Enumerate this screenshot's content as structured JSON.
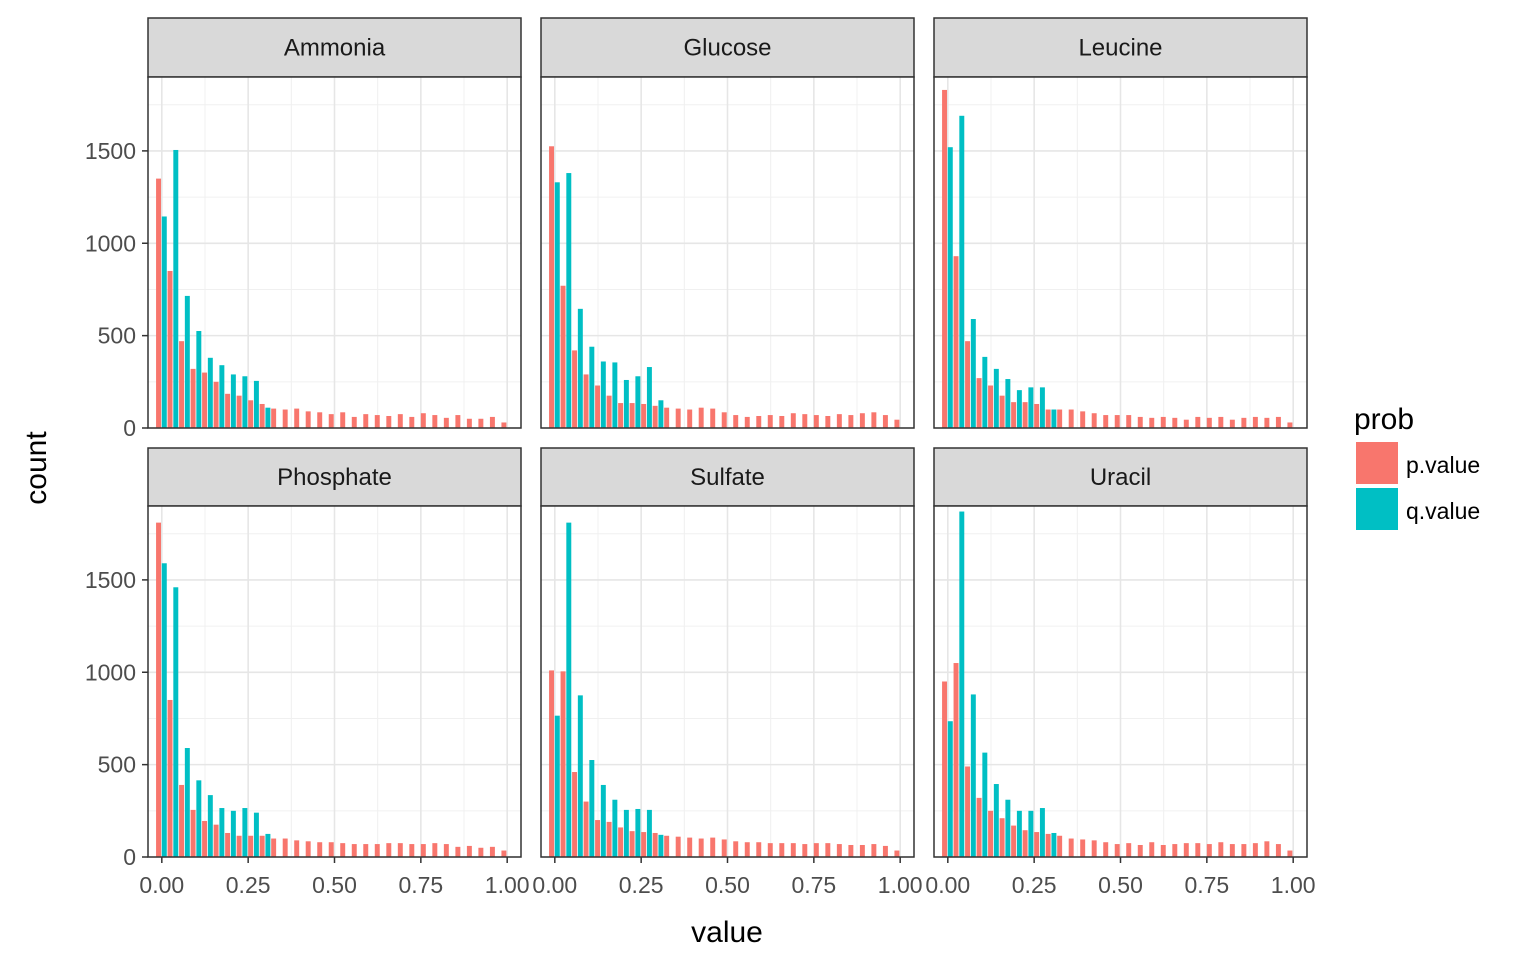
{
  "chart_data": {
    "type": "bar",
    "subtype": "faceted-histogram-dodged",
    "xlabel": "value",
    "ylabel": "count",
    "xlim": [
      -0.04,
      1.04
    ],
    "ylim": [
      0,
      1900
    ],
    "xticks": [
      0,
      0.25,
      0.5,
      0.75,
      1
    ],
    "xtick_labels": [
      "0.00",
      "0.25",
      "0.50",
      "0.75",
      "1.00"
    ],
    "yticks": [
      0,
      500,
      1000,
      1500
    ],
    "ytick_labels": [
      "0",
      "500",
      "1000",
      "1500"
    ],
    "grid": true,
    "legend": {
      "title": "prob",
      "position": "right",
      "entries": [
        {
          "label": "p.value",
          "color": "#F8766D"
        },
        {
          "label": "q.value",
          "color": "#00BFC4"
        }
      ]
    },
    "bin_centers": [
      0,
      0.0333,
      0.0667,
      0.1,
      0.1333,
      0.1667,
      0.2,
      0.2333,
      0.2667,
      0.3,
      0.3333,
      0.3667,
      0.4,
      0.4333,
      0.4667,
      0.5,
      0.5333,
      0.5667,
      0.6,
      0.6333,
      0.6667,
      0.7,
      0.7333,
      0.7667,
      0.8,
      0.8333,
      0.8667,
      0.9,
      0.9333,
      0.9667,
      1
    ],
    "facets": [
      {
        "title": "Ammonia",
        "series": [
          {
            "name": "p.value",
            "values": [
              1350,
              850,
              470,
              320,
              300,
              250,
              185,
              175,
              150,
              130,
              105,
              100,
              105,
              90,
              85,
              75,
              85,
              60,
              75,
              70,
              65,
              75,
              60,
              80,
              70,
              55,
              70,
              50,
              50,
              60,
              30
            ]
          },
          {
            "name": "q.value",
            "values": [
              1145,
              1505,
              715,
              525,
              380,
              340,
              290,
              280,
              255,
              110,
              0,
              0,
              0,
              0,
              0,
              0,
              0,
              0,
              0,
              0,
              0,
              0,
              0,
              0,
              0,
              0,
              0,
              0,
              0,
              0,
              0
            ]
          }
        ]
      },
      {
        "title": "Glucose",
        "series": [
          {
            "name": "p.value",
            "values": [
              1525,
              770,
              420,
              290,
              230,
              175,
              135,
              135,
              130,
              120,
              110,
              105,
              100,
              110,
              105,
              85,
              70,
              60,
              65,
              70,
              65,
              80,
              75,
              70,
              65,
              75,
              70,
              80,
              85,
              70,
              45
            ]
          },
          {
            "name": "q.value",
            "values": [
              1330,
              1380,
              645,
              440,
              360,
              355,
              260,
              280,
              330,
              150,
              0,
              0,
              0,
              0,
              0,
              0,
              0,
              0,
              0,
              0,
              0,
              0,
              0,
              0,
              0,
              0,
              0,
              0,
              0,
              0,
              0
            ]
          }
        ]
      },
      {
        "title": "Leucine",
        "series": [
          {
            "name": "p.value",
            "values": [
              1830,
              930,
              470,
              270,
              230,
              175,
              140,
              140,
              130,
              100,
              100,
              100,
              90,
              80,
              70,
              70,
              70,
              60,
              55,
              60,
              55,
              45,
              60,
              55,
              60,
              45,
              55,
              60,
              55,
              60,
              30
            ]
          },
          {
            "name": "q.value",
            "values": [
              1520,
              1690,
              590,
              385,
              320,
              265,
              205,
              220,
              220,
              100,
              0,
              0,
              0,
              0,
              0,
              0,
              0,
              0,
              0,
              0,
              0,
              0,
              0,
              0,
              0,
              0,
              0,
              0,
              0,
              0,
              0
            ]
          }
        ]
      },
      {
        "title": "Phosphate",
        "series": [
          {
            "name": "p.value",
            "values": [
              1810,
              850,
              390,
              255,
              195,
              175,
              130,
              115,
              115,
              115,
              100,
              100,
              90,
              85,
              80,
              80,
              75,
              70,
              70,
              70,
              75,
              75,
              70,
              70,
              75,
              70,
              55,
              60,
              50,
              55,
              35
            ]
          },
          {
            "name": "q.value",
            "values": [
              1590,
              1460,
              590,
              415,
              335,
              265,
              250,
              265,
              240,
              125,
              0,
              0,
              0,
              0,
              0,
              0,
              0,
              0,
              0,
              0,
              0,
              0,
              0,
              0,
              0,
              0,
              0,
              0,
              0,
              0,
              0
            ]
          }
        ]
      },
      {
        "title": "Sulfate",
        "series": [
          {
            "name": "p.value",
            "values": [
              1010,
              1005,
              460,
              300,
              200,
              190,
              160,
              140,
              135,
              130,
              115,
              110,
              105,
              100,
              105,
              95,
              85,
              80,
              80,
              75,
              75,
              75,
              70,
              75,
              75,
              70,
              65,
              65,
              70,
              60,
              35
            ]
          },
          {
            "name": "q.value",
            "values": [
              765,
              1810,
              875,
              525,
              390,
              310,
              255,
              260,
              255,
              120,
              0,
              0,
              0,
              0,
              0,
              0,
              0,
              0,
              0,
              0,
              0,
              0,
              0,
              0,
              0,
              0,
              0,
              0,
              0,
              0,
              0
            ]
          }
        ]
      },
      {
        "title": "Uracil",
        "series": [
          {
            "name": "p.value",
            "values": [
              950,
              1050,
              490,
              320,
              250,
              210,
              170,
              145,
              135,
              125,
              115,
              100,
              95,
              90,
              80,
              70,
              75,
              65,
              80,
              65,
              70,
              75,
              75,
              70,
              80,
              70,
              70,
              75,
              85,
              70,
              35
            ]
          },
          {
            "name": "q.value",
            "values": [
              735,
              1870,
              880,
              565,
              395,
              310,
              250,
              250,
              265,
              130,
              0,
              0,
              0,
              0,
              0,
              0,
              0,
              0,
              0,
              0,
              0,
              0,
              0,
              0,
              0,
              0,
              0,
              0,
              0,
              0,
              0
            ]
          }
        ]
      }
    ]
  }
}
